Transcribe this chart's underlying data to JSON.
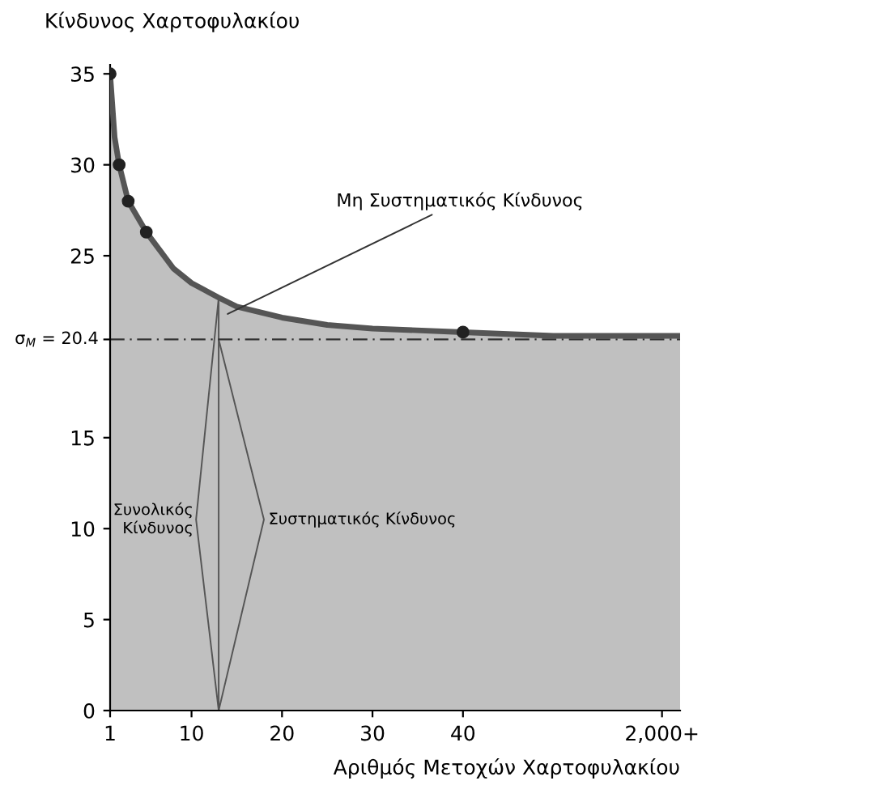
{
  "chart_data": {
    "type": "area",
    "ylabel": "Κίνδυνος Χαρτοφυλακίου",
    "xlabel": "Αριθμός Μετοχών Χαρτοφυλακίου",
    "xlim": [
      1,
      64
    ],
    "ylim": [
      0,
      35.5
    ],
    "xticks": [
      1,
      10,
      20,
      30,
      40,
      {
        "value": 62,
        "label": "2,000+"
      }
    ],
    "yticks": [
      0,
      5,
      10,
      15,
      {
        "value": 20.4,
        "label": null
      },
      25,
      30,
      35
    ],
    "series": [
      {
        "color": "#c0c0c0",
        "x": [
          1,
          1.5,
          2,
          3,
          5,
          8,
          10,
          13,
          15,
          20,
          25,
          30,
          40,
          50,
          64
        ],
        "values": [
          35,
          31.5,
          30,
          28,
          26.3,
          24.3,
          23.5,
          22.7,
          22.2,
          21.6,
          21.2,
          21.0,
          20.8,
          20.6,
          20.6
        ]
      },
      {
        "type": "scatter",
        "color": "#222222",
        "x": [
          1,
          2,
          3,
          5,
          40
        ],
        "values": [
          35,
          30,
          28,
          26.3,
          20.8
        ]
      },
      {
        "type": "line",
        "color": "#555555",
        "x": [
          13,
          13
        ],
        "values": [
          0,
          22.7
        ]
      },
      {
        "type": "line",
        "color": "#555555",
        "x": [
          13,
          10.5,
          13
        ],
        "values": [
          0,
          10.5,
          22.7
        ]
      },
      {
        "type": "line",
        "color": "#555555",
        "x": [
          13,
          18,
          13
        ],
        "values": [
          0,
          10.5,
          20.4
        ]
      }
    ],
    "ref_lines": [
      {
        "axis": "y",
        "value": 20.4,
        "label": "σ$_{M}$ = 20.4",
        "color": "#333333",
        "line_style": "dashed"
      }
    ],
    "annotations": [
      {
        "text": "Μη Συστηματικός Κίνδυνος",
        "x": 14,
        "y": 21.8
      },
      "Συνολικός\nΚίνδυνος",
      "Συστηματικός Κίνδυνος"
    ],
    "grid": false,
    "legend": false
  }
}
